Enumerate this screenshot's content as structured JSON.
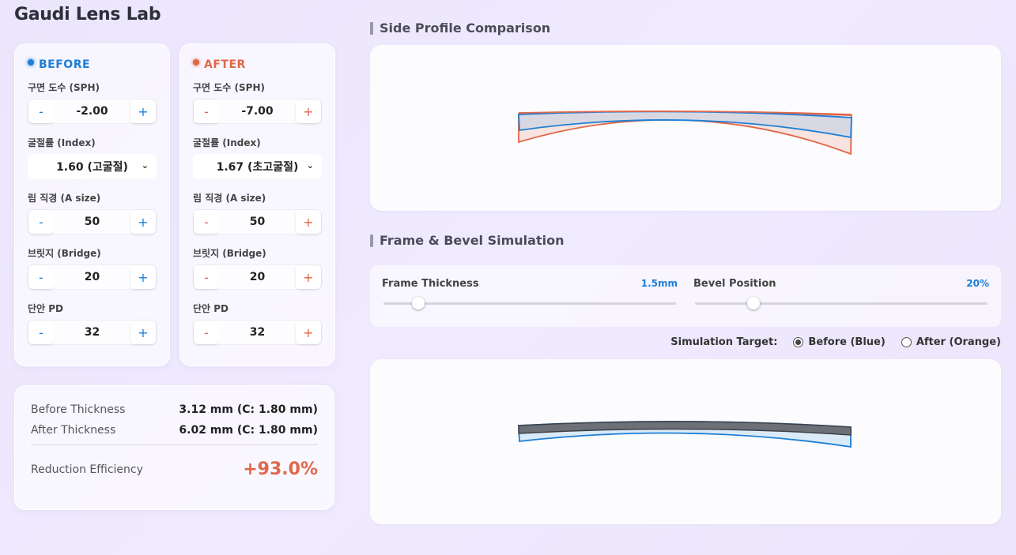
{
  "app": {
    "title": "Gaudi Lens Lab"
  },
  "before": {
    "header": "BEFORE",
    "sph": {
      "label": "구면 도수 (SPH)",
      "value": "-2.00"
    },
    "index": {
      "label": "굴절률 (Index)",
      "value": "1.60 (고굴절)"
    },
    "a_size": {
      "label": "림 직경 (A size)",
      "value": "50"
    },
    "bridge": {
      "label": "브릿지 (Bridge)",
      "value": "20"
    },
    "pd": {
      "label": "단안 PD",
      "value": "32"
    }
  },
  "after": {
    "header": "AFTER",
    "sph": {
      "label": "구면 도수 (SPH)",
      "value": "-7.00"
    },
    "index": {
      "label": "굴절률 (Index)",
      "value": "1.67 (초고굴절)"
    },
    "a_size": {
      "label": "림 직경 (A size)",
      "value": "50"
    },
    "bridge": {
      "label": "브릿지 (Bridge)",
      "value": "20"
    },
    "pd": {
      "label": "단안 PD",
      "value": "32"
    }
  },
  "stepper": {
    "minus": "-",
    "plus": "+",
    "chevron": "⌄"
  },
  "results": {
    "before_label": "Before Thickness",
    "before_value": "3.12 mm (C: 1.80 mm)",
    "after_label": "After Thickness",
    "after_value": "6.02 mm (C: 1.80 mm)",
    "efficiency_label": "Reduction Efficiency",
    "efficiency_value": "+93.0%"
  },
  "profile": {
    "title": "Side Profile Comparison"
  },
  "frame": {
    "title": "Frame & Bevel Simulation",
    "thickness_label": "Frame Thickness",
    "thickness_value": "1.5mm",
    "thickness_fraction": 0.12,
    "bevel_label": "Bevel Position",
    "bevel_value": "20%",
    "bevel_fraction": 0.2
  },
  "simulation": {
    "label": "Simulation Target:",
    "options": [
      {
        "label": "Before (Blue)",
        "selected": true
      },
      {
        "label": "After (Orange)",
        "selected": false
      }
    ]
  },
  "colors": {
    "before": "#1d7fd6",
    "after": "#e0674a"
  }
}
